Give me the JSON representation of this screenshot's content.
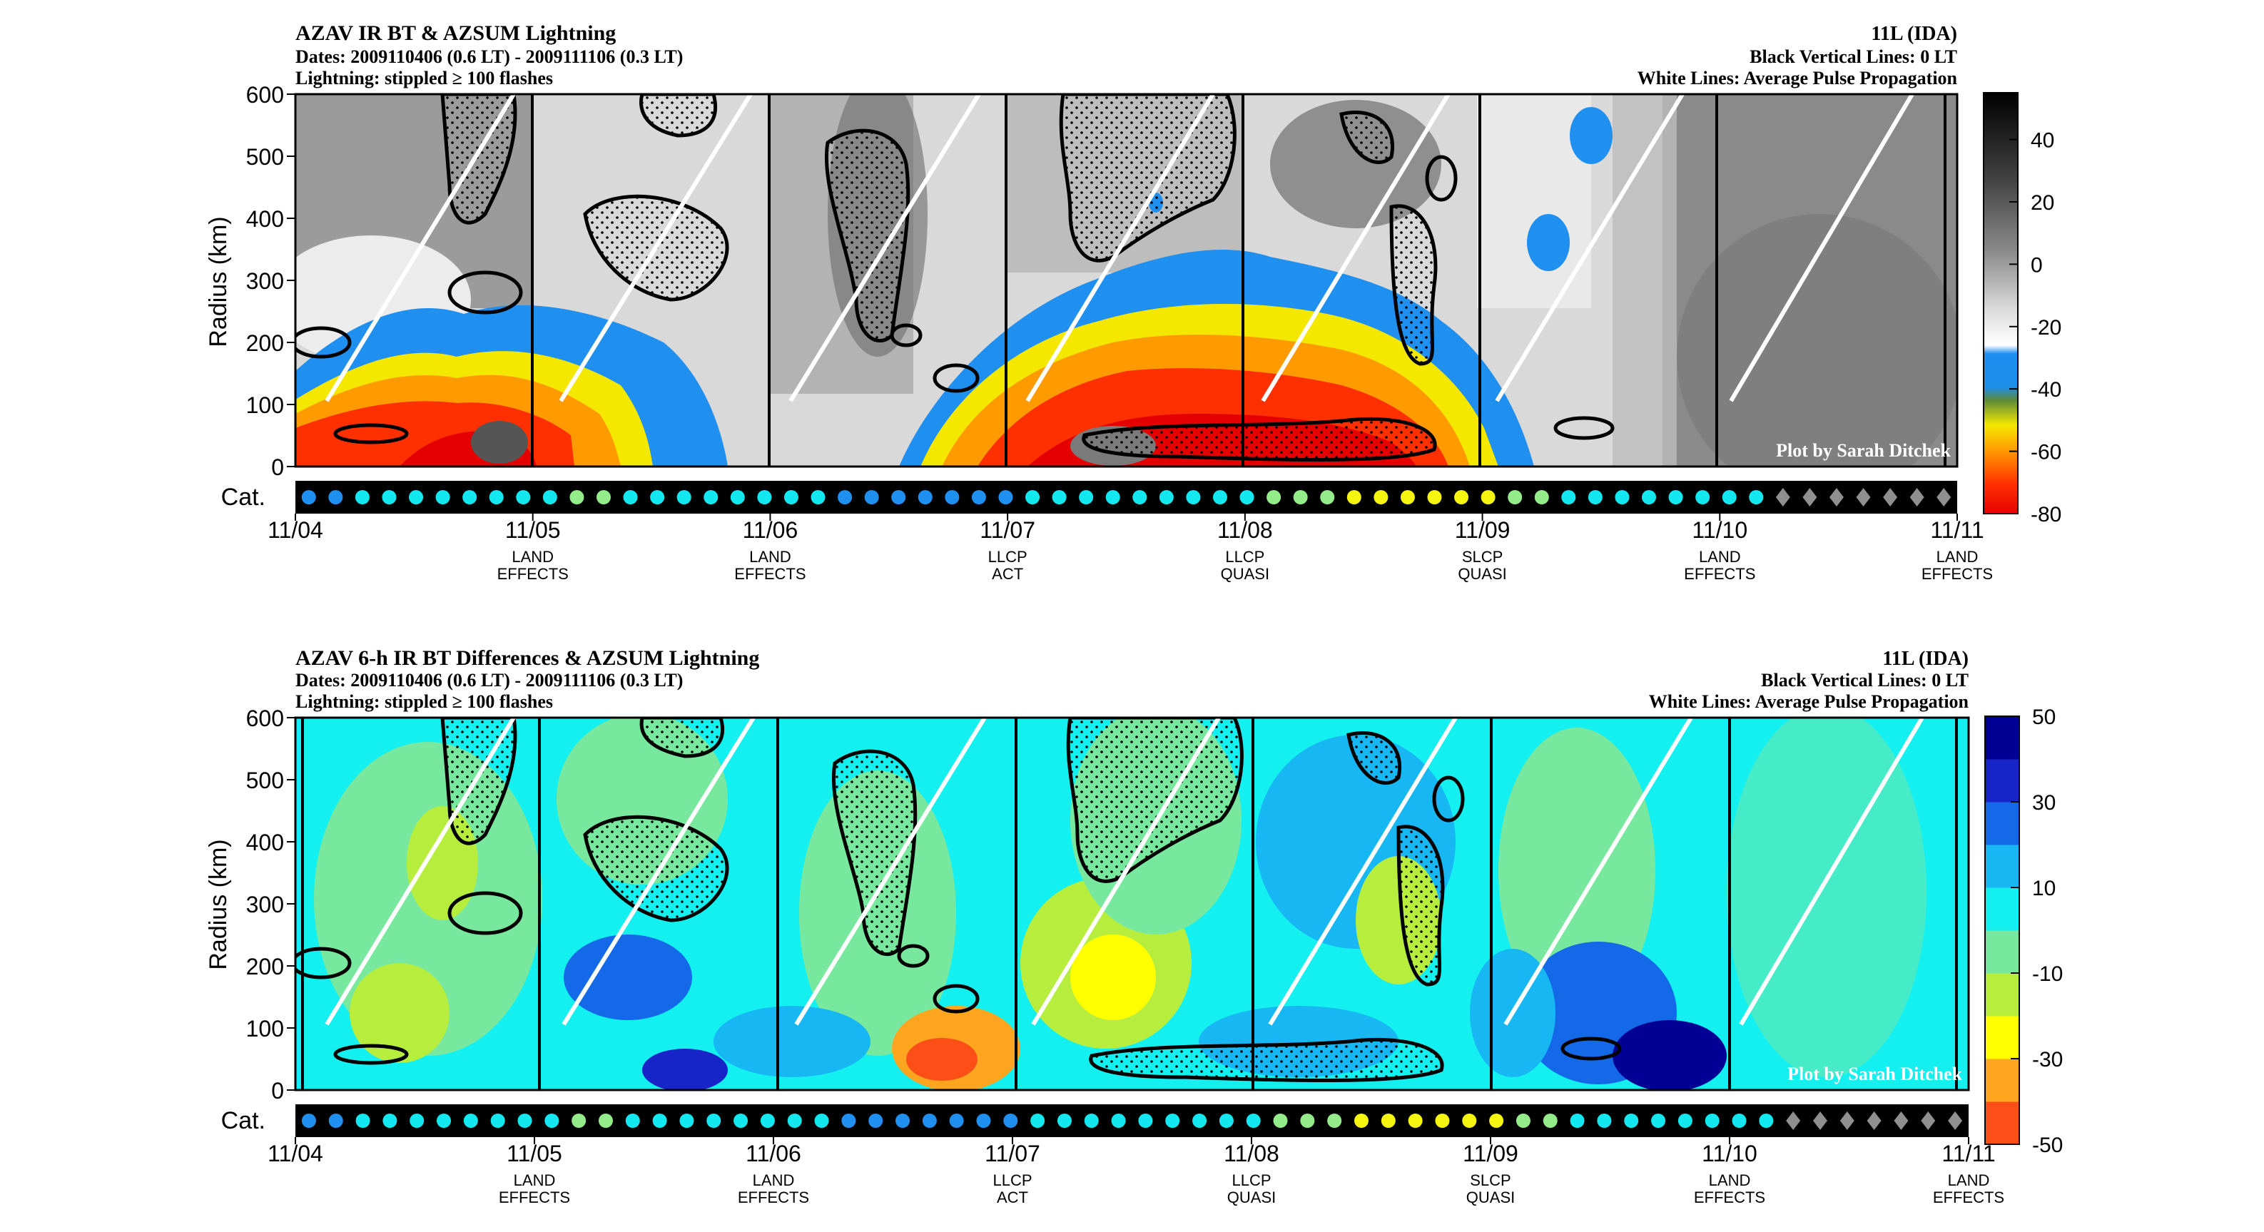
{
  "chart_data": [
    {
      "type": "heatmap",
      "title": "AZAV IR BT & AZSUM Lightning",
      "subtitle_dates": "Dates: 2009110406 (0.6 LT) - 2009111106 (0.3 LT)",
      "subtitle_lightning": "Lightning: stippled ≥ 100 flashes",
      "storm_label": "11L (IDA)",
      "black_lines_note": "Black Vertical Lines: 0 LT",
      "white_lines_note": "White Lines: Average Pulse Propagation",
      "watermark": "Plot by Sarah Ditchek",
      "ylabel": "Radius (km)",
      "yticks": [
        "0",
        "100",
        "200",
        "300",
        "400",
        "500",
        "600"
      ],
      "ylim": [
        0,
        600
      ],
      "cat_label": "Cat.",
      "xticks": [
        "11/04",
        "11/05",
        "11/06",
        "11/07",
        "11/08",
        "11/09",
        "11/10",
        "11/11"
      ],
      "day_labels": [
        [
          "",
          ""
        ],
        [
          "LAND",
          "EFFECTS"
        ],
        [
          "LAND",
          "EFFECTS"
        ],
        [
          "LLCP",
          "ACT"
        ],
        [
          "LLCP",
          "QUASI"
        ],
        [
          "SLCP",
          "QUASI"
        ],
        [
          "LAND",
          "EFFECTS"
        ],
        [
          "LAND",
          "EFFECTS"
        ]
      ],
      "colorbar_ticks": [
        "40",
        "20",
        "0",
        "-20",
        "-40",
        "-60",
        "-80"
      ],
      "colorbar_range": [
        -80,
        55
      ],
      "grid": false
    },
    {
      "type": "heatmap",
      "title": "AZAV 6-h IR BT Differences & AZSUM Lightning",
      "subtitle_dates": "Dates: 2009110406 (0.6 LT) - 2009111106 (0.3 LT)",
      "subtitle_lightning": "Lightning: stippled ≥ 100 flashes",
      "storm_label": "11L (IDA)",
      "black_lines_note": "Black Vertical Lines: 0 LT",
      "white_lines_note": "White Lines: Average Pulse Propagation",
      "watermark": "Plot by Sarah Ditchek",
      "ylabel": "Radius (km)",
      "yticks": [
        "0",
        "100",
        "200",
        "300",
        "400",
        "500",
        "600"
      ],
      "ylim": [
        0,
        600
      ],
      "cat_label": "Cat.",
      "xticks": [
        "11/04",
        "11/05",
        "11/06",
        "11/07",
        "11/08",
        "11/09",
        "11/10",
        "11/11"
      ],
      "day_labels": [
        [
          "",
          ""
        ],
        [
          "LAND",
          "EFFECTS"
        ],
        [
          "LAND",
          "EFFECTS"
        ],
        [
          "LLCP",
          "ACT"
        ],
        [
          "LLCP",
          "QUASI"
        ],
        [
          "SLCP",
          "QUASI"
        ],
        [
          "LAND",
          "EFFECTS"
        ],
        [
          "LAND",
          "EFFECTS"
        ]
      ],
      "colorbar_ticks": [
        "50",
        "30",
        "10",
        "-10",
        "-30",
        "-50"
      ],
      "colorbar_range": [
        -50,
        50
      ],
      "grid": false
    }
  ],
  "category_sequence": [
    "d",
    "d",
    "c",
    "c",
    "c",
    "c",
    "c",
    "c",
    "c",
    "c",
    "g",
    "g",
    "c",
    "c",
    "c",
    "c",
    "c",
    "c",
    "c",
    "c",
    "d",
    "d",
    "d",
    "d",
    "d",
    "d",
    "d",
    "c",
    "c",
    "c",
    "c",
    "c",
    "c",
    "c",
    "c",
    "c",
    "g",
    "g",
    "g",
    "y",
    "y",
    "y",
    "y",
    "y",
    "y",
    "g",
    "g",
    "c",
    "c",
    "c",
    "c",
    "c",
    "c",
    "c",
    "c",
    "x",
    "x",
    "x",
    "x",
    "x",
    "x",
    "x"
  ],
  "category_colors": {
    "d": "#1f8ff0",
    "c": "#13e8f0",
    "g": "#94eb8a",
    "y": "#f5f50f",
    "x": "#8f8f8f"
  },
  "ir_colormap": [
    "#8c8c8c",
    "#2f2f2f",
    "#000000"
  ],
  "diff_colormap": [
    "#fc4f17",
    "#ffa51f",
    "#ffff00",
    "#b7ee3e",
    "#77e89e",
    "#14f0f0",
    "#17b7f3",
    "#1469e8",
    "#1725c8",
    "#000095"
  ]
}
